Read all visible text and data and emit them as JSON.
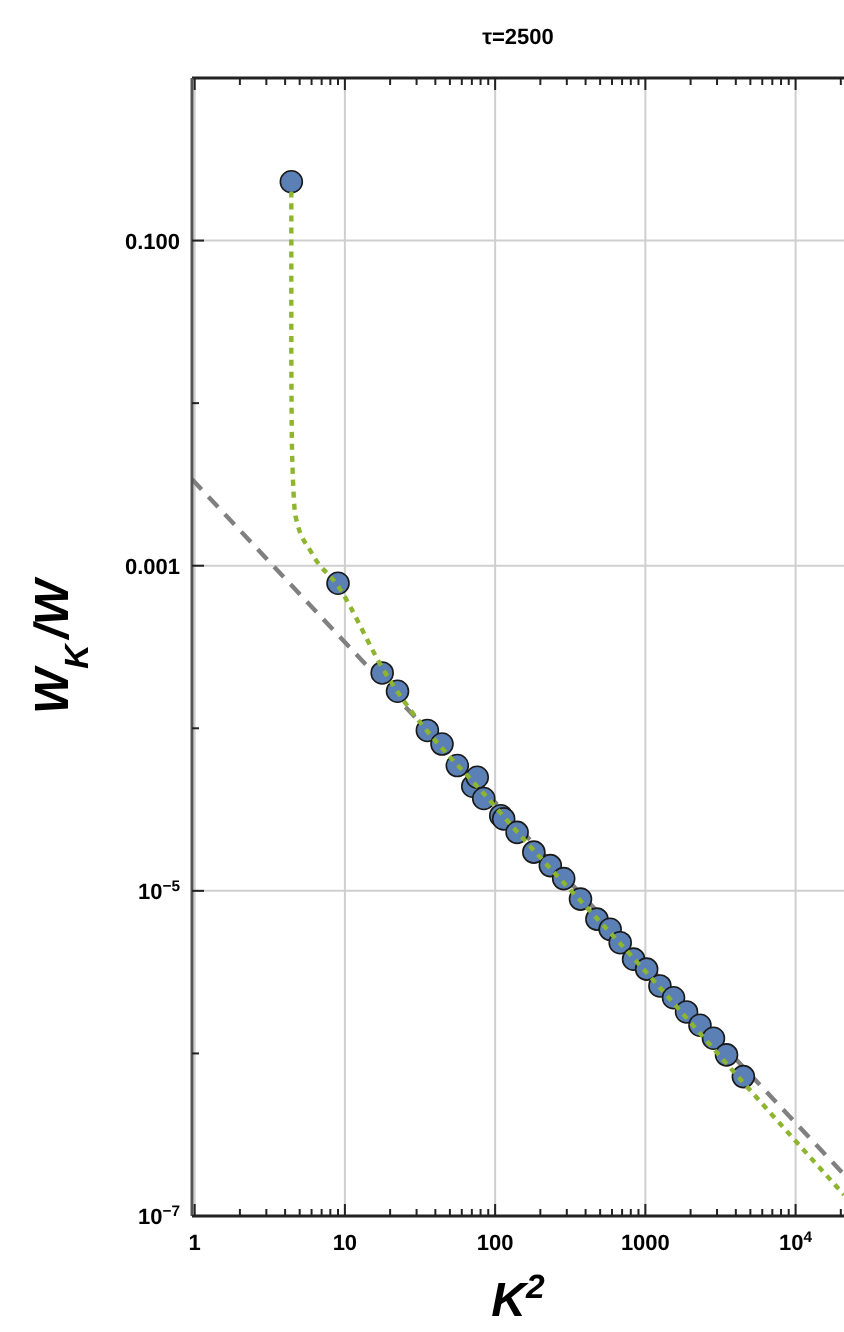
{
  "chart_data": {
    "type": "scatter",
    "title": "τ=2500",
    "xlabel": "K$^{2}$",
    "ylabel": "W$_{K}$/W",
    "log": "xy",
    "grid": true,
    "xlim": [
      0.96,
      21000
    ],
    "ylim": [
      1e-07,
      1
    ],
    "xticks": [
      1,
      {
        "value": 2,
        "label": null
      },
      {
        "value": 3,
        "label": null
      },
      {
        "value": 4,
        "label": null
      },
      {
        "value": 5,
        "label": null
      },
      {
        "value": 6,
        "label": null
      },
      {
        "value": 7,
        "label": null
      },
      {
        "value": 8,
        "label": null
      },
      {
        "value": 9,
        "label": null
      },
      10,
      {
        "value": 20,
        "label": null
      },
      {
        "value": 30,
        "label": null
      },
      {
        "value": 40,
        "label": null
      },
      {
        "value": 50,
        "label": null
      },
      {
        "value": 60,
        "label": null
      },
      {
        "value": 70,
        "label": null
      },
      {
        "value": 80,
        "label": null
      },
      {
        "value": 90,
        "label": null
      },
      100,
      {
        "value": 200,
        "label": null
      },
      {
        "value": 300,
        "label": null
      },
      {
        "value": 400,
        "label": null
      },
      {
        "value": 500,
        "label": null
      },
      {
        "value": 600,
        "label": null
      },
      {
        "value": 700,
        "label": null
      },
      {
        "value": 800,
        "label": null
      },
      {
        "value": 900,
        "label": null
      },
      1000,
      {
        "value": 2000,
        "label": null
      },
      {
        "value": 3000,
        "label": null
      },
      {
        "value": 4000,
        "label": null
      },
      {
        "value": 5000,
        "label": null
      },
      {
        "value": 6000,
        "label": null
      },
      {
        "value": 7000,
        "label": null
      },
      {
        "value": 8000,
        "label": null
      },
      {
        "value": 9000,
        "label": null
      },
      {
        "value": 10000,
        "label": "10$^{4}$"
      },
      {
        "value": 20000,
        "label": null
      }
    ],
    "yticks": [
      {
        "value": 1e-07,
        "label": "10$^{−7}$"
      },
      {
        "value": 1e-06,
        "label": null
      },
      {
        "value": 1e-05,
        "label": "10$^{−5}$"
      },
      {
        "value": 0.0001,
        "label": null
      },
      0.001,
      {
        "value": 0.01,
        "label": null
      },
      {
        "value": 0.1,
        "label": "0.100"
      }
    ],
    "series": [
      {
        "type": "line",
        "color": "#808080",
        "line_style": "dashed",
        "marker": "none",
        "x": [
          0.96,
          21000
        ],
        "values": [
          0.0034,
          1.8e-07
        ]
      },
      {
        "color": "#5b80b6",
        "marker": "circle",
        "x": [
          4.4,
          9,
          17.7,
          22.4,
          35.4,
          44.3,
          56,
          71,
          76,
          84,
          109,
          114,
          140,
          181,
          233,
          286,
          370,
          476,
          583,
          680,
          835,
          1020,
          1250,
          1540,
          1880,
          2310,
          2840,
          3470,
          4490
        ],
        "values": [
          0.23,
          0.00078,
          0.000219,
          0.000169,
          9.7e-05,
          8e-05,
          5.9e-05,
          4.4e-05,
          5e-05,
          3.7e-05,
          2.9e-05,
          2.77e-05,
          2.29e-05,
          1.73e-05,
          1.43e-05,
          1.19e-05,
          8.9e-06,
          6.7e-06,
          5.8e-06,
          4.8e-06,
          3.8e-06,
          3.3e-06,
          2.6e-06,
          2.2e-06,
          1.8e-06,
          1.49e-06,
          1.24e-06,
          9.8e-07,
          7.2e-07
        ]
      },
      {
        "type": "line",
        "color": "#8db52e",
        "line_style": "dotted",
        "marker": "none",
        "x": [
          4.4,
          4.4,
          4.45,
          4.7,
          6,
          9,
          18,
          100,
          1000,
          4500,
          21000
        ],
        "values": [
          0.2,
          0.02,
          0.005,
          0.002,
          0.0012,
          0.00075,
          0.00023,
          3.3e-05,
          3.2e-06,
          6.6e-07,
          1.35e-07
        ]
      }
    ]
  }
}
